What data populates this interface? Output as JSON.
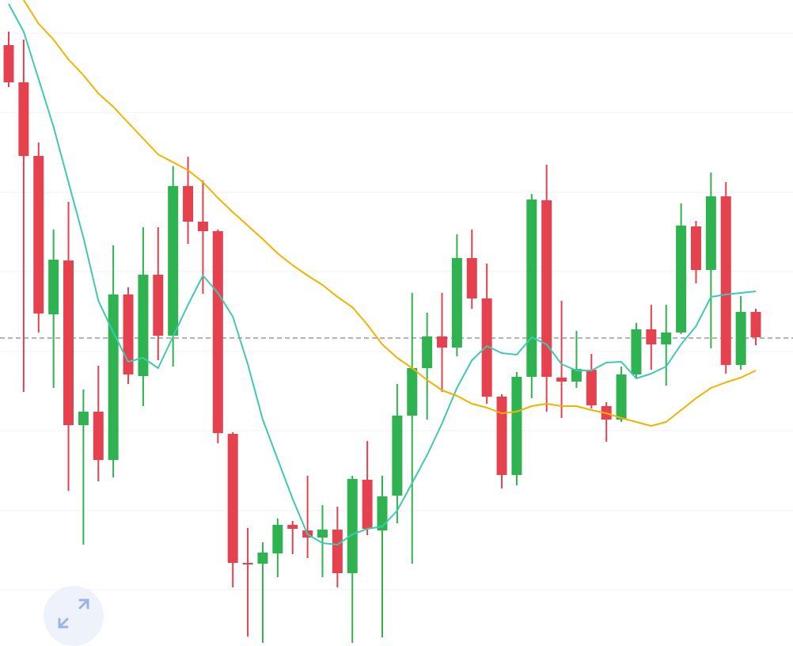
{
  "chart_data": {
    "type": "candlestick",
    "open": [
      756,
      709,
      616,
      416,
      484,
      276,
      293,
      232,
      441,
      338,
      466,
      389,
      578,
      533,
      521,
      265,
      102,
      101,
      114,
      150,
      143,
      134,
      144,
      89,
      207,
      143,
      187,
      288,
      348,
      388,
      374,
      487,
      436,
      312,
      213,
      337,
      560,
      336,
      331,
      346,
      300,
      283,
      340,
      397,
      378,
      393,
      527,
      472,
      565,
      352,
      419
    ],
    "high": [
      773,
      763,
      633,
      523,
      558,
      321,
      351,
      503,
      450,
      526,
      526,
      603,
      615,
      585,
      523,
      267,
      146,
      128,
      158,
      155,
      212,
      175,
      173,
      212,
      256,
      212,
      328,
      443,
      418,
      443,
      517,
      523,
      480,
      315,
      343,
      568,
      605,
      433,
      395,
      366,
      305,
      350,
      405,
      428,
      428,
      556,
      534,
      595,
      583,
      439,
      423
    ],
    "low": [
      703,
      318,
      393,
      323,
      193,
      125,
      205,
      210,
      328,
      300,
      358,
      350,
      505,
      442,
      253,
      71,
      9,
      1,
      84,
      113,
      108,
      84,
      71,
      1,
      137,
      8,
      152,
      101,
      283,
      318,
      363,
      423,
      303,
      196,
      200,
      310,
      293,
      285,
      323,
      297,
      255,
      280,
      335,
      346,
      326,
      391,
      455,
      373,
      341,
      346,
      377
    ],
    "close": [
      709,
      616,
      417,
      485,
      276,
      293,
      232,
      441,
      340,
      466,
      389,
      578,
      533,
      521,
      266,
      102,
      100,
      115,
      150,
      145,
      134,
      144,
      89,
      208,
      145,
      186,
      288,
      348,
      388,
      374,
      487,
      436,
      312,
      213,
      337,
      561,
      337,
      331,
      347,
      301,
      283,
      340,
      397,
      378,
      393,
      528,
      472,
      565,
      352,
      419,
      387
    ],
    "up_color": "#2fb350",
    "down_color": "#e5414f",
    "series": [
      {
        "color": "#3ecab0",
        "values": [
          808,
          773,
          713,
          653,
          583,
          513,
          433,
          393,
          356,
          361,
          348,
          388,
          428,
          465,
          443,
          413,
          353,
          283,
          233,
          183,
          138,
          127,
          125,
          138,
          145,
          148,
          168,
          203,
          238,
          278,
          323,
          358,
          376,
          367,
          365,
          387,
          378,
          353,
          345,
          345,
          355,
          356,
          335,
          341,
          350,
          378,
          401,
          438,
          441,
          443,
          445
        ]
      },
      {
        "color": "#f0b400",
        "values": [
          null,
          813,
          783,
          763,
          738,
          718,
          695,
          678,
          658,
          638,
          618,
          608,
          598,
          583,
          563,
          545,
          528,
          511,
          493,
          478,
          465,
          453,
          438,
          425,
          403,
          378,
          361,
          348,
          333,
          320,
          313,
          303,
          298,
          291,
          293,
          300,
          303,
          300,
          300,
          295,
          291,
          285,
          280,
          275,
          280,
          295,
          310,
          323,
          330,
          336,
          345
        ]
      }
    ],
    "ylim": [
      0,
      813
    ],
    "yticks": [
      771,
      671,
      570,
      470,
      369,
      269,
      168,
      68
    ],
    "grid": true,
    "price_line": 386
  }
}
